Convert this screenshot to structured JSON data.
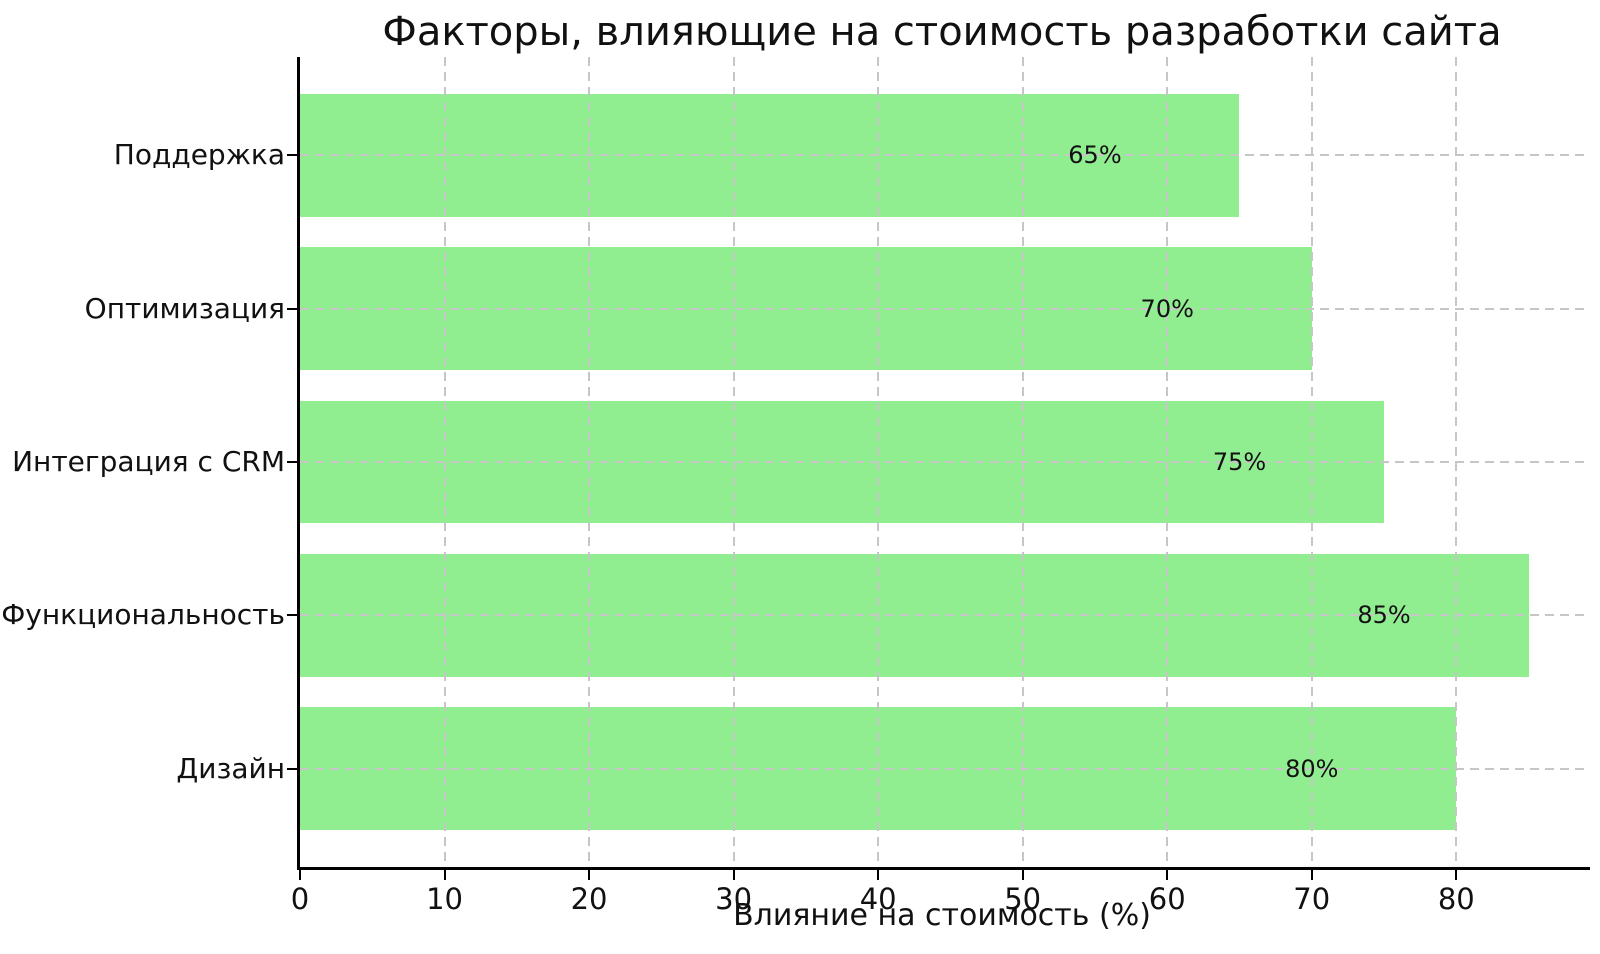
{
  "figure": {
    "background_color": "#ffffff",
    "text_color": "#111111",
    "spine_color": "#000000"
  },
  "chart_data": {
    "type": "bar",
    "orientation": "horizontal",
    "title": "Факторы, влияющие на стоимость разработки сайта",
    "xlabel": "Влияние на стоимость (%)",
    "ylabel": "",
    "categories_top_to_bottom": [
      "Поддержка",
      "Оптимизация",
      "Интеграция с CRM",
      "Функциональность",
      "Дизайн"
    ],
    "values": [
      65,
      70,
      75,
      85,
      80
    ],
    "bar_labels": [
      "65%",
      "70%",
      "75%",
      "85%",
      "80%"
    ],
    "xticks": [
      0,
      10,
      20,
      30,
      40,
      50,
      60,
      70,
      80
    ],
    "xlim": [
      0,
      89.25
    ],
    "grid": {
      "visible": true,
      "style": "dashed",
      "color": "#c6c6c6",
      "drawn_above_bars": true
    },
    "bar_color": "#90EE90",
    "bar_label_inset_units": 10,
    "legend": "none"
  }
}
